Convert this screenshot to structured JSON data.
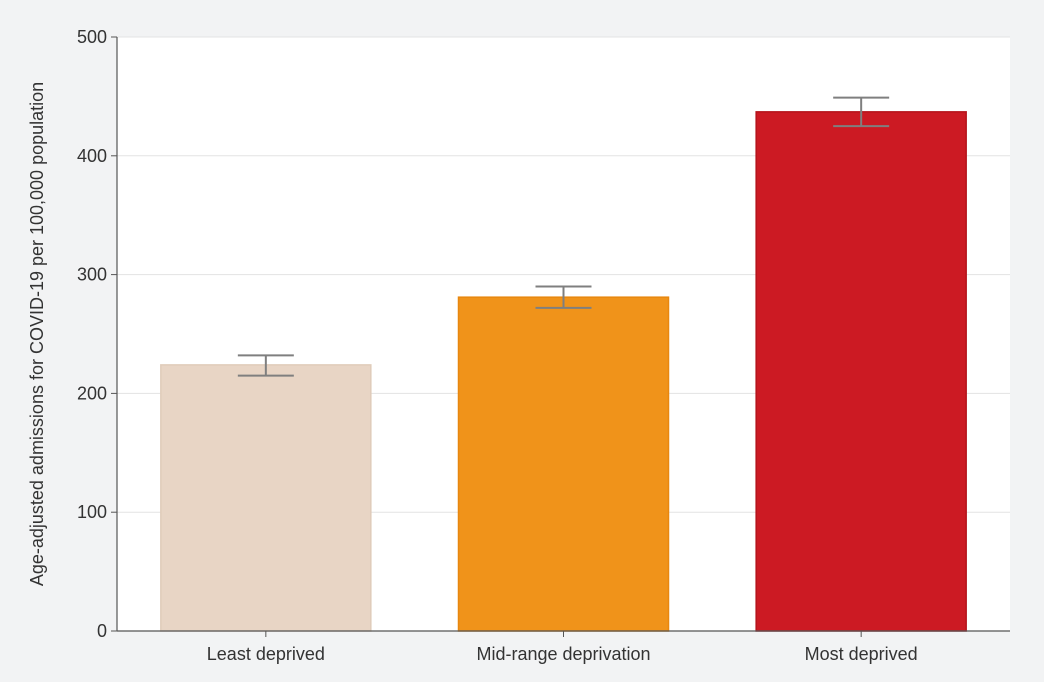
{
  "chart_data": {
    "type": "bar",
    "categories": [
      "Least deprived",
      "Mid-range deprivation",
      "Most deprived"
    ],
    "values": [
      224,
      281,
      437
    ],
    "error_low": [
      215,
      272,
      425
    ],
    "error_high": [
      232,
      290,
      449
    ],
    "colors": [
      "#e8d5c5",
      "#f0931a",
      "#cc1a23"
    ],
    "border_colors": [
      "#e0ccba",
      "#e8870f",
      "#b5141c"
    ],
    "title": "",
    "xlabel": "",
    "ylabel": "Age-adjusted admissions for COVID-19 per 100,000 population",
    "ylim": [
      0,
      500
    ],
    "yticks": [
      0,
      100,
      200,
      300,
      400,
      500
    ],
    "grid": true
  },
  "colors": {
    "background": "#f2f3f4",
    "plot_background": "#ffffff",
    "gridline": "#e3e3e3",
    "axis": "#555555",
    "errorbar": "#7f7f7f"
  }
}
